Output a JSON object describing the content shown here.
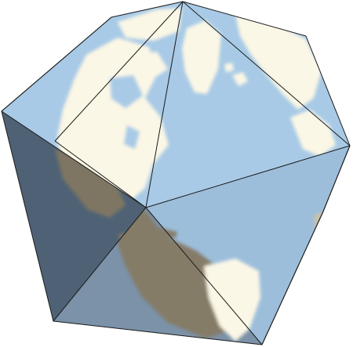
{
  "scene": {
    "subject": "icosahedron-globe",
    "colors": {
      "background": "#ffffff",
      "ocean_lit": "#a9cbe6",
      "ocean_mid": "#9ebfdc",
      "ocean_shade": "#516477",
      "land_lit": "#fbf7e6",
      "land_shade": "#807866",
      "edge": "#1a1a1a"
    }
  }
}
